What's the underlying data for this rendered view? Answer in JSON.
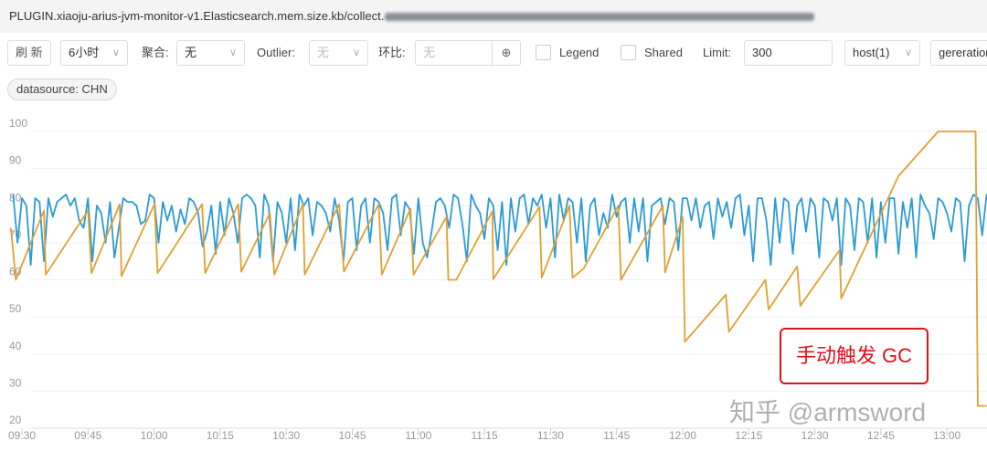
{
  "title": "PLUGIN.xiaoju-arius-jvm-monitor-v1.Elasticsearch.mem.size.kb/collect.",
  "toolbar": {
    "refresh": "刷 新",
    "range": "6小时",
    "agg_label": "聚合:",
    "agg_value": "无",
    "outlier_label": "Outlier:",
    "outlier_value": "无",
    "compare_label": "环比:",
    "compare_placeholder": "无",
    "legend": "Legend",
    "shared": "Shared",
    "limit_label": "Limit:",
    "limit_value": "300",
    "host": "host(1)",
    "generation": "gereration"
  },
  "tag": "datasource: CHN",
  "annotation": "手动触发 GC",
  "watermark": "知乎 @armsword",
  "chart_data": {
    "type": "line",
    "ylim": [
      20,
      100
    ],
    "yticks": [
      "20",
      "30",
      "40",
      "50",
      "60",
      "70",
      "80",
      "90",
      "100"
    ],
    "xticks": [
      "09:30",
      "09:45",
      "10:00",
      "10:15",
      "10:30",
      "10:45",
      "11:00",
      "11:15",
      "11:30",
      "11:45",
      "12:00",
      "12:15",
      "12:30",
      "12:45",
      "13:00"
    ],
    "grid": true,
    "series": [
      {
        "color": "#2b9bd6",
        "x_start": "09:28",
        "interval_min": 1,
        "values": [
          83,
          70,
          82,
          80,
          64,
          82,
          81,
          65,
          82,
          77,
          81,
          82,
          83,
          80,
          82,
          76,
          74,
          82,
          65,
          80,
          78,
          70,
          81,
          66,
          74,
          82,
          81,
          81,
          80,
          75,
          76,
          83,
          82,
          70,
          81,
          76,
          80,
          73,
          79,
          75,
          82,
          81,
          78,
          69,
          73,
          80,
          67,
          81,
          72,
          82,
          78,
          70,
          82,
          83,
          82,
          80,
          66,
          83,
          80,
          65,
          81,
          78,
          70,
          82,
          68,
          83,
          80,
          82,
          72,
          81,
          80,
          78,
          73,
          82,
          76,
          65,
          81,
          82,
          68,
          80,
          82,
          70,
          82,
          81,
          78,
          68,
          82,
          83,
          72,
          81,
          79,
          67,
          82,
          70,
          66,
          73,
          81,
          82,
          80,
          74,
          83,
          82,
          75,
          65,
          83,
          80,
          78,
          71,
          82,
          80,
          68,
          81,
          64,
          82,
          73,
          82,
          83,
          75,
          82,
          80,
          83,
          74,
          82,
          66,
          83,
          76,
          82,
          81,
          70,
          82,
          65,
          80,
          82,
          72,
          78,
          74,
          83,
          77,
          81,
          82,
          70,
          82,
          73,
          82,
          65,
          80,
          81,
          82,
          75,
          82,
          81,
          68,
          82,
          82,
          76,
          82,
          74,
          80,
          81,
          71,
          82,
          77,
          81,
          74,
          82,
          83,
          72,
          80,
          65,
          82,
          82,
          76,
          64,
          82,
          70,
          82,
          81,
          67,
          80,
          82,
          73,
          82,
          80,
          66,
          82,
          81,
          76,
          82,
          64,
          82,
          80,
          68,
          82,
          81,
          70,
          82,
          66,
          81,
          70,
          82,
          82,
          67,
          81,
          74,
          82,
          66,
          83,
          80,
          78,
          71,
          82,
          81,
          78,
          73,
          82,
          81,
          65,
          80,
          83,
          82,
          72,
          83,
          82
        ]
      },
      {
        "color": "#e0a030",
        "points": [
          [
            "09:27.5",
            74
          ],
          [
            "09:28.6",
            60
          ],
          [
            "09:35",
            78.7
          ],
          [
            "09:35.4",
            61.4
          ],
          [
            "09:45",
            78.7
          ],
          [
            "09:45.8",
            61.8
          ],
          [
            "09:52.2",
            80.4
          ],
          [
            "09:52.6",
            61
          ],
          [
            "10:00.1",
            80.4
          ],
          [
            "10:00.8",
            61.8
          ],
          [
            "10:10.9",
            80.4
          ],
          [
            "10:11.6",
            61.8
          ],
          [
            "10:19.1",
            80.4
          ],
          [
            "10:19.8",
            62.2
          ],
          [
            "10:26.3",
            78
          ],
          [
            "10:27.3",
            61.4
          ],
          [
            "10:33.8",
            80.4
          ],
          [
            "10:34.2",
            61.4
          ],
          [
            "10:42",
            80.4
          ],
          [
            "10:43.1",
            62.2
          ],
          [
            "10:51",
            80.4
          ],
          [
            "10:51.7",
            61.4
          ],
          [
            "10:58.2",
            79.2
          ],
          [
            "10:58.9",
            61.4
          ],
          [
            "11:06.4",
            77
          ],
          [
            "11:06.8",
            60
          ],
          [
            "11:08.6",
            60
          ],
          [
            "11:16.8",
            78.5
          ],
          [
            "11:17",
            60.2
          ],
          [
            "11:27.5",
            79.7
          ],
          [
            "11:28",
            60.6
          ],
          [
            "11:34.3",
            80
          ],
          [
            "11:35",
            60.6
          ],
          [
            "11:37.5",
            63
          ],
          [
            "11:45.4",
            80
          ],
          [
            "11:46",
            60
          ],
          [
            "11:55.5",
            80
          ],
          [
            "11:56",
            62
          ],
          [
            "12:00",
            77
          ],
          [
            "12:00.5",
            43.3
          ],
          [
            "12:09.8",
            56
          ],
          [
            "12:10.5",
            46
          ],
          [
            "12:18.8",
            60
          ],
          [
            "12:19.5",
            52
          ],
          [
            "12:26",
            63.6
          ],
          [
            "12:26.7",
            53
          ],
          [
            "12:35.6",
            68
          ],
          [
            "12:36",
            55
          ],
          [
            "12:49",
            88
          ],
          [
            "12:58",
            100
          ],
          [
            "13:06.5",
            100
          ],
          [
            "13:07",
            26
          ],
          [
            "13:09",
            26
          ]
        ]
      }
    ]
  }
}
